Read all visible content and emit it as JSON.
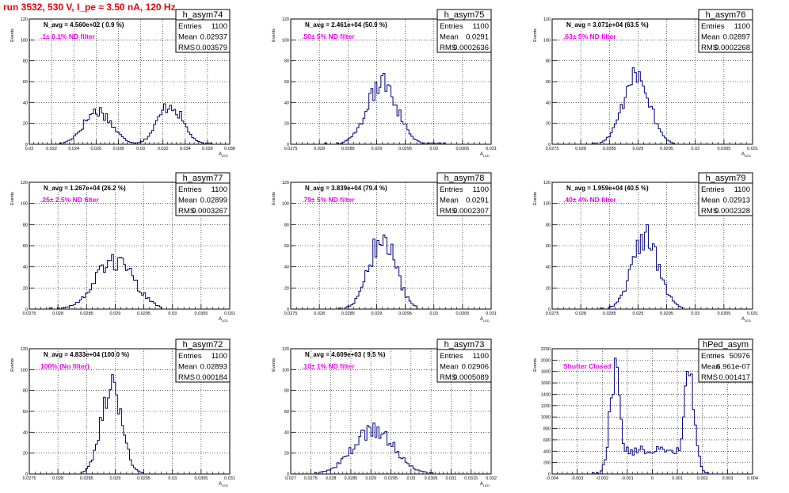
{
  "page_title": "run 3532,   530 V, I_pe ≈ 3.50 nA, 120 Hz",
  "colors": {
    "title": "#e8000b",
    "histogram": "#000080",
    "filter_label": "#ee00ee",
    "axes": "#000000",
    "grid": "#000000"
  },
  "chart_data": [
    {
      "type": "histogram",
      "name": "h_asym74",
      "title": "N_avg = 4.560e+02 ( 0.9 %)",
      "annotation": ".1± 0.1% ND filter",
      "stats": {
        "entries_label": "Entries",
        "entries": "1100",
        "mean_label": "Mean",
        "mean": "0.02937",
        "rms_label": "RMS",
        "rms": "0.003579"
      },
      "xlabel": "A_{LED}",
      "ylabel": "Events",
      "xlim": [
        0.02,
        0.038
      ],
      "ylim": [
        0,
        120
      ],
      "xticks": [
        0.02,
        0.022,
        0.024,
        0.026,
        0.028,
        0.03,
        0.032,
        0.034,
        0.036,
        0.038
      ],
      "xtick_labels": [
        "0.02",
        "0.022",
        "0.024",
        "0.026",
        "0.028",
        "0.03",
        "0.032",
        "0.034",
        "0.036",
        "0.038"
      ],
      "yticks": [
        0,
        20,
        40,
        60,
        80,
        100,
        120
      ],
      "ytick_labels": [
        "0",
        "20",
        "40",
        "60",
        "80",
        "100",
        "120"
      ],
      "grid": true,
      "peaks": [
        {
          "center": 0.02615,
          "sigma": 0.00125,
          "height": 32
        },
        {
          "center": 0.03265,
          "sigma": 0.0011,
          "height": 38
        }
      ],
      "x_range": [
        0.0227,
        0.0365
      ]
    },
    {
      "type": "histogram",
      "name": "h_asym75",
      "title": "N_avg = 2.461e+04 (50.9 %)",
      "annotation": ".50± 5% ND filter",
      "stats": {
        "entries_label": "Entries",
        "entries": "1100",
        "mean_label": "Mean",
        "mean": "0.0291",
        "rms_label": "RMS",
        "rms": "0.0002636"
      },
      "xlabel": "A_{LED}",
      "ylabel": "Events",
      "xlim": [
        0.0275,
        0.031
      ],
      "ylim": [
        0,
        120
      ],
      "xticks": [
        0.0275,
        0.028,
        0.0285,
        0.029,
        0.0295,
        0.03,
        0.0305,
        0.031
      ],
      "xtick_labels": [
        "0.0275",
        "0.028",
        "0.0285",
        "0.029",
        "0.0295",
        "0.03",
        "0.0305",
        "0.031"
      ],
      "yticks": [
        0,
        20,
        40,
        60,
        80,
        100,
        120
      ],
      "ytick_labels": [
        "0",
        "20",
        "40",
        "60",
        "80",
        "100",
        "120"
      ],
      "grid": true,
      "peaks": [
        {
          "center": 0.0291,
          "sigma": 0.00026,
          "height": 58
        }
      ],
      "x_range": [
        0.0281,
        0.0302
      ]
    },
    {
      "type": "histogram",
      "name": "h_asym76",
      "title": "N_avg = 3.071e+04 (63.5 %)",
      "annotation": ".63± 5% ND filter",
      "stats": {
        "entries_label": "Entries",
        "entries": "1100",
        "mean_label": "Mean",
        "mean": "0.02897",
        "rms_label": "RMS",
        "rms": "0.0002268"
      },
      "xlabel": "A_{LED}",
      "ylabel": "Events",
      "xlim": [
        0.0275,
        0.031
      ],
      "ylim": [
        0,
        120
      ],
      "xticks": [
        0.0275,
        0.028,
        0.0285,
        0.029,
        0.0295,
        0.03,
        0.0305,
        0.031
      ],
      "xtick_labels": [
        "0.0275",
        "0.028",
        "0.0285",
        "0.029",
        "0.0295",
        "0.03",
        "0.0305",
        "0.031"
      ],
      "yticks": [
        0,
        20,
        40,
        60,
        80,
        100,
        120
      ],
      "ytick_labels": [
        "0",
        "20",
        "40",
        "60",
        "80",
        "100",
        "120"
      ],
      "grid": true,
      "peaks": [
        {
          "center": 0.02897,
          "sigma": 0.00023,
          "height": 68
        }
      ],
      "x_range": [
        0.0282,
        0.0297
      ]
    },
    {
      "type": "histogram",
      "name": "h_asym77",
      "title": "N_avg = 1.267e+04 (26.2 %)",
      "annotation": ".25± 2.5% ND filter",
      "stats": {
        "entries_label": "Entries",
        "entries": "1100",
        "mean_label": "Mean",
        "mean": "0.02899",
        "rms_label": "RMS",
        "rms": "0.0003267"
      },
      "xlabel": "A_{LED}",
      "ylabel": "Events",
      "xlim": [
        0.0275,
        0.031
      ],
      "ylim": [
        0,
        120
      ],
      "xticks": [
        0.0275,
        0.028,
        0.0285,
        0.029,
        0.0295,
        0.03,
        0.0305,
        0.031
      ],
      "xtick_labels": [
        "0.0275",
        "0.028",
        "0.0285",
        "0.029",
        "0.0295",
        "0.03",
        "0.0305",
        "0.031"
      ],
      "yticks": [
        0,
        20,
        40,
        60,
        80,
        100,
        120
      ],
      "ytick_labels": [
        "0",
        "20",
        "40",
        "60",
        "80",
        "100",
        "120"
      ],
      "grid": true,
      "peaks": [
        {
          "center": 0.02899,
          "sigma": 0.00033,
          "height": 46
        }
      ],
      "x_range": [
        0.0278,
        0.0298
      ]
    },
    {
      "type": "histogram",
      "name": "h_asym78",
      "title": "N_avg = 3.839e+04 (79.4 %)",
      "annotation": ".79± 5% ND filter",
      "stats": {
        "entries_label": "Entries",
        "entries": "1100",
        "mean_label": "Mean",
        "mean": "0.0291",
        "rms_label": "RMS",
        "rms": "0.0002307"
      },
      "xlabel": "A_{LED}",
      "ylabel": "Events",
      "xlim": [
        0.0275,
        0.031
      ],
      "ylim": [
        0,
        120
      ],
      "xticks": [
        0.0275,
        0.028,
        0.0285,
        0.029,
        0.0295,
        0.03,
        0.0305,
        0.031
      ],
      "xtick_labels": [
        "0.0275",
        "0.028",
        "0.0285",
        "0.029",
        "0.0295",
        "0.03",
        "0.0305",
        "0.031"
      ],
      "yticks": [
        0,
        20,
        40,
        60,
        80,
        100,
        120
      ],
      "ytick_labels": [
        "0",
        "20",
        "40",
        "60",
        "80",
        "100",
        "120"
      ],
      "grid": true,
      "peaks": [
        {
          "center": 0.0291,
          "sigma": 0.00023,
          "height": 68
        }
      ],
      "x_range": [
        0.0283,
        0.0297
      ]
    },
    {
      "type": "histogram",
      "name": "h_asym79",
      "title": "N_avg = 1.959e+04 (40.5 %)",
      "annotation": ".40± 4% ND filter",
      "stats": {
        "entries_label": "Entries",
        "entries": "1100",
        "mean_label": "Mean",
        "mean": "0.02913",
        "rms_label": "RMS",
        "rms": "0.0002328"
      },
      "xlabel": "A_{LED}",
      "ylabel": "Events",
      "xlim": [
        0.0275,
        0.031
      ],
      "ylim": [
        0,
        120
      ],
      "xticks": [
        0.0275,
        0.028,
        0.0285,
        0.029,
        0.0295,
        0.03,
        0.0305,
        0.031
      ],
      "xtick_labels": [
        "0.0275",
        "0.028",
        "0.0285",
        "0.029",
        "0.0295",
        "0.03",
        "0.0305",
        "0.031"
      ],
      "yticks": [
        0,
        20,
        40,
        60,
        80,
        100,
        120
      ],
      "ytick_labels": [
        "0",
        "20",
        "40",
        "60",
        "80",
        "100",
        "120"
      ],
      "grid": true,
      "peaks": [
        {
          "center": 0.02913,
          "sigma": 0.00023,
          "height": 68
        }
      ],
      "x_range": [
        0.0283,
        0.0298
      ]
    },
    {
      "type": "histogram",
      "name": "h_asym72",
      "title": "N_avg = 4.833e+04 (100.0 %)",
      "annotation": "100% (No filter)",
      "stats": {
        "entries_label": "Entries",
        "entries": "1100",
        "mean_label": "Mean",
        "mean": "0.02893",
        "rms_label": "RMS",
        "rms": "0.000184"
      },
      "xlabel": "A_{LED}",
      "ylabel": "Events",
      "xlim": [
        0.0275,
        0.031
      ],
      "ylim": [
        0,
        120
      ],
      "xticks": [
        0.0275,
        0.028,
        0.0285,
        0.029,
        0.0295,
        0.03,
        0.0305,
        0.031
      ],
      "xtick_labels": [
        "0.0275",
        "0.028",
        "0.0285",
        "0.029",
        "0.0295",
        "0.03",
        "0.0305",
        "0.031"
      ],
      "yticks": [
        0,
        20,
        40,
        60,
        80,
        100,
        120
      ],
      "ytick_labels": [
        "0",
        "20",
        "40",
        "60",
        "80",
        "100",
        "120"
      ],
      "grid": true,
      "peaks": [
        {
          "center": 0.02893,
          "sigma": 0.00018,
          "height": 86
        }
      ],
      "x_range": [
        0.0284,
        0.0295
      ]
    },
    {
      "type": "histogram",
      "name": "h_asym73",
      "title": "N_avg = 4.609e+03 ( 9.5 %)",
      "annotation": ".10± 1% ND filter",
      "stats": {
        "entries_label": "Entries",
        "entries": "1100",
        "mean_label": "Mean",
        "mean": "0.02906",
        "rms_label": "RMS",
        "rms": "0.0005089"
      },
      "xlabel": "A_{LED}",
      "ylabel": "Events",
      "xlim": [
        0.027,
        0.032
      ],
      "ylim": [
        0,
        120
      ],
      "xticks": [
        0.027,
        0.0275,
        0.028,
        0.0285,
        0.029,
        0.0295,
        0.03,
        0.0305,
        0.031,
        0.0315,
        0.032
      ],
      "xtick_labels": [
        "0.027",
        "0.0275",
        "0.028",
        "0.0285",
        "0.029",
        "0.0295",
        "0.03",
        "0.0305",
        "0.031",
        "0.0315",
        "0.032"
      ],
      "yticks": [
        0,
        20,
        40,
        60,
        80,
        100,
        120
      ],
      "ytick_labels": [
        "0",
        "20",
        "40",
        "60",
        "80",
        "100",
        "120"
      ],
      "grid": true,
      "peaks": [
        {
          "center": 0.02906,
          "sigma": 0.00051,
          "height": 42
        }
      ],
      "x_range": [
        0.0276,
        0.0306
      ]
    },
    {
      "type": "histogram",
      "name": "hPed_asym",
      "title": "",
      "annotation": "Shutter Closed",
      "stats": {
        "entries_label": "Entries",
        "entries": "50976",
        "mean_label": "Mean",
        "mean": "6.961e-07",
        "rms_label": "RMS",
        "rms": "0.001417"
      },
      "xlabel": "",
      "ylabel": "Events",
      "xlim": [
        -0.004,
        0.004
      ],
      "ylim": [
        0,
        2200
      ],
      "xticks": [
        -0.004,
        -0.003,
        -0.002,
        -0.001,
        0,
        0.001,
        0.002,
        0.003,
        0.004
      ],
      "xtick_labels": [
        "-0.004",
        "-0.003",
        "-0.002",
        "-0.001",
        "0",
        "0.001",
        "0.002",
        "0.003",
        "0.004"
      ],
      "yticks": [
        0,
        200,
        400,
        600,
        800,
        1000,
        1200,
        1400,
        1600,
        1800,
        2000,
        2200
      ],
      "ytick_labels": [
        "0",
        "200",
        "400",
        "600",
        "800",
        "1000",
        "1200",
        "1400",
        "1600",
        "1800",
        "2000",
        "2200"
      ],
      "grid": true,
      "peaks": [
        {
          "center": -0.00147,
          "sigma": 0.00022,
          "height": 1750
        },
        {
          "center": 0.00147,
          "sigma": 0.00022,
          "height": 1650
        }
      ],
      "baseline": {
        "level": 380,
        "from": -0.0013,
        "to": 0.0013
      },
      "x_range": [
        -0.0024,
        0.0024
      ]
    }
  ]
}
